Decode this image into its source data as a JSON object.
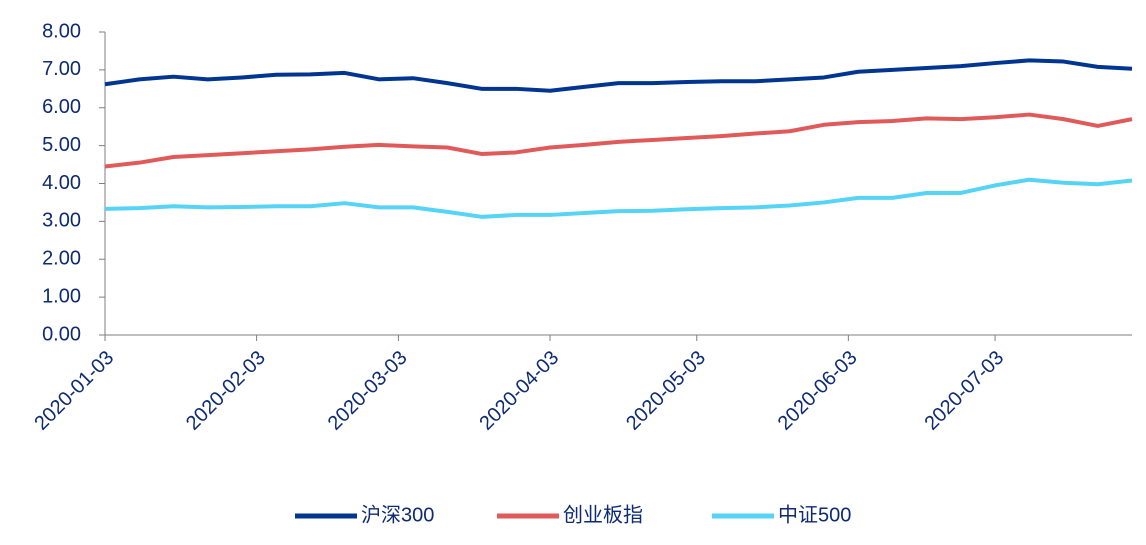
{
  "chart_data": {
    "type": "line",
    "x": [
      "2020-01-03",
      "2020-01-10",
      "2020-01-17",
      "2020-01-24",
      "2020-01-31",
      "2020-02-07",
      "2020-02-14",
      "2020-02-21",
      "2020-02-28",
      "2020-03-06",
      "2020-03-13",
      "2020-03-20",
      "2020-03-27",
      "2020-04-03",
      "2020-04-10",
      "2020-04-17",
      "2020-04-24",
      "2020-05-01",
      "2020-05-08",
      "2020-05-15",
      "2020-05-22",
      "2020-05-29",
      "2020-06-05",
      "2020-06-12",
      "2020-06-19",
      "2020-06-26",
      "2020-07-03",
      "2020-07-10",
      "2020-07-17",
      "2020-07-24",
      "2020-07-31"
    ],
    "series": [
      {
        "name": "沪深300",
        "color": "#003591",
        "values": [
          6.62,
          6.75,
          6.82,
          6.75,
          6.8,
          6.87,
          6.88,
          6.92,
          6.75,
          6.78,
          6.65,
          6.5,
          6.5,
          6.45,
          6.55,
          6.65,
          6.65,
          6.68,
          6.7,
          6.7,
          6.75,
          6.8,
          6.95,
          7.0,
          7.05,
          7.1,
          7.18,
          7.25,
          7.22,
          7.08,
          7.03
        ]
      },
      {
        "name": "创业板指",
        "color": "#e05a5a",
        "values": [
          4.45,
          4.55,
          4.7,
          4.75,
          4.8,
          4.85,
          4.9,
          4.97,
          5.02,
          4.98,
          4.95,
          4.78,
          4.82,
          4.95,
          5.02,
          5.1,
          5.15,
          5.2,
          5.25,
          5.32,
          5.38,
          5.55,
          5.62,
          5.65,
          5.72,
          5.7,
          5.75,
          5.82,
          5.7,
          5.52,
          5.7
        ]
      },
      {
        "name": "中证500",
        "color": "#55d4f5",
        "values": [
          3.33,
          3.35,
          3.4,
          3.37,
          3.38,
          3.4,
          3.4,
          3.48,
          3.37,
          3.37,
          3.25,
          3.12,
          3.17,
          3.17,
          3.22,
          3.27,
          3.28,
          3.32,
          3.35,
          3.37,
          3.42,
          3.5,
          3.62,
          3.62,
          3.75,
          3.75,
          3.95,
          4.1,
          4.02,
          3.98,
          4.08
        ]
      }
    ],
    "xlim": [
      "2020-01-03",
      "2020-07-31"
    ],
    "xticks": [
      "2020-01-03",
      "2020-02-03",
      "2020-03-03",
      "2020-04-03",
      "2020-05-03",
      "2020-06-03",
      "2020-07-03"
    ],
    "ylim": [
      0,
      8
    ],
    "yticks": [
      {
        "value": 0,
        "label": "0.00"
      },
      {
        "value": 1,
        "label": "1.00"
      },
      {
        "value": 2,
        "label": "2.00"
      },
      {
        "value": 3,
        "label": "3.00"
      },
      {
        "value": 4,
        "label": "4.00"
      },
      {
        "value": 5,
        "label": "5.00"
      },
      {
        "value": 6,
        "label": "6.00"
      },
      {
        "value": 7,
        "label": "7.00"
      },
      {
        "value": 8,
        "label": "8.00"
      }
    ]
  }
}
